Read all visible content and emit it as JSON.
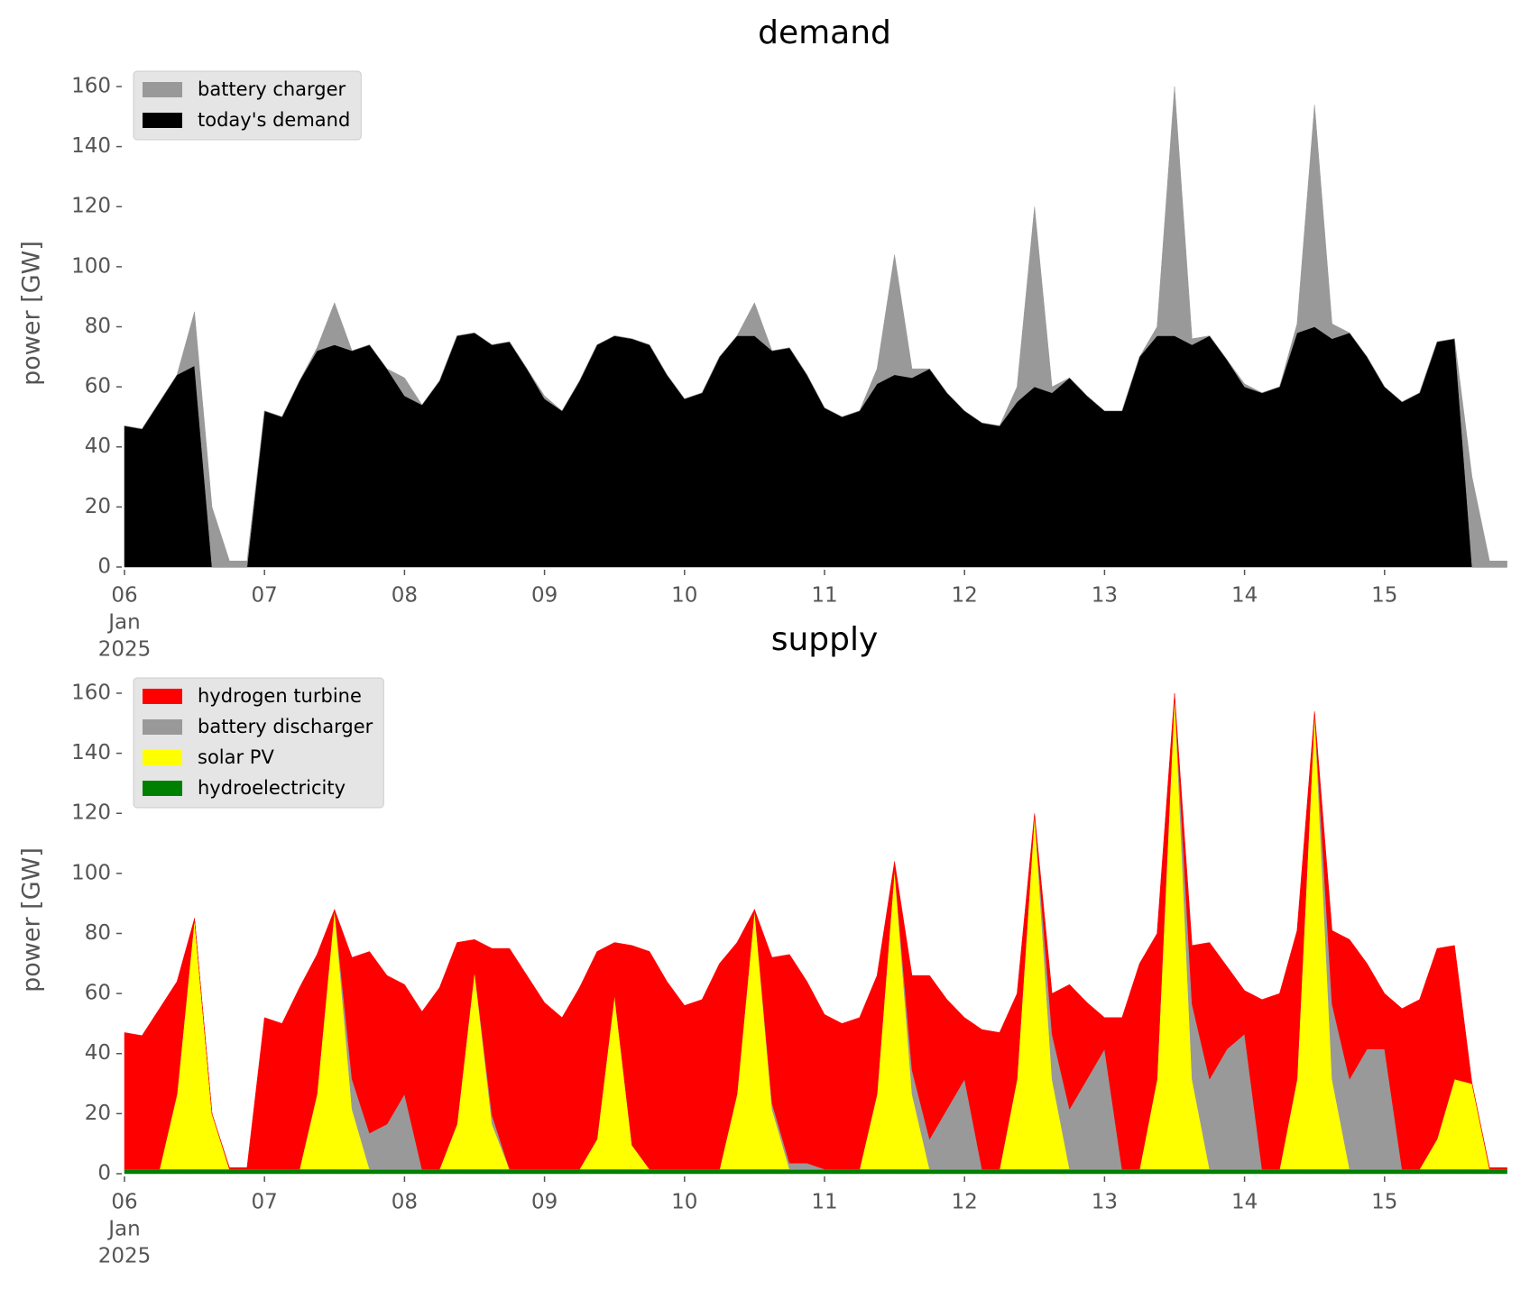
{
  "chart_data": [
    {
      "type": "stacked_area",
      "title": "demand",
      "y_label": "power [GW]",
      "x": [
        "2025-01-06 00:00",
        "2025-01-06 03:00",
        "2025-01-06 06:00",
        "2025-01-06 09:00",
        "2025-01-06 12:00",
        "2025-01-06 15:00",
        "2025-01-06 18:00",
        "2025-01-06 21:00",
        "2025-01-07 00:00",
        "2025-01-07 03:00",
        "2025-01-07 06:00",
        "2025-01-07 09:00",
        "2025-01-07 12:00",
        "2025-01-07 15:00",
        "2025-01-07 18:00",
        "2025-01-07 21:00",
        "2025-01-08 00:00",
        "2025-01-08 03:00",
        "2025-01-08 06:00",
        "2025-01-08 09:00",
        "2025-01-08 12:00",
        "2025-01-08 15:00",
        "2025-01-08 18:00",
        "2025-01-08 21:00",
        "2025-01-09 00:00",
        "2025-01-09 03:00",
        "2025-01-09 06:00",
        "2025-01-09 09:00",
        "2025-01-09 12:00",
        "2025-01-09 15:00",
        "2025-01-09 18:00",
        "2025-01-09 21:00",
        "2025-01-10 00:00",
        "2025-01-10 03:00",
        "2025-01-10 06:00",
        "2025-01-10 09:00",
        "2025-01-10 12:00",
        "2025-01-10 15:00",
        "2025-01-10 18:00",
        "2025-01-10 21:00",
        "2025-01-11 00:00",
        "2025-01-11 03:00",
        "2025-01-11 06:00",
        "2025-01-11 09:00",
        "2025-01-11 12:00",
        "2025-01-11 15:00",
        "2025-01-11 18:00",
        "2025-01-11 21:00",
        "2025-01-12 00:00",
        "2025-01-12 03:00",
        "2025-01-12 06:00",
        "2025-01-12 09:00",
        "2025-01-12 12:00",
        "2025-01-12 15:00",
        "2025-01-12 18:00",
        "2025-01-12 21:00",
        "2025-01-13 00:00",
        "2025-01-13 03:00",
        "2025-01-13 06:00",
        "2025-01-13 09:00",
        "2025-01-13 12:00",
        "2025-01-13 15:00",
        "2025-01-13 18:00",
        "2025-01-13 21:00",
        "2025-01-14 00:00",
        "2025-01-14 03:00",
        "2025-01-14 06:00",
        "2025-01-14 09:00",
        "2025-01-14 12:00",
        "2025-01-14 15:00",
        "2025-01-14 18:00",
        "2025-01-14 21:00",
        "2025-01-15 00:00",
        "2025-01-15 03:00",
        "2025-01-15 06:00",
        "2025-01-15 09:00",
        "2025-01-15 12:00",
        "2025-01-15 15:00",
        "2025-01-15 18:00",
        "2025-01-15 21:00"
      ],
      "xlim": [
        "2025-01-06 00:00",
        "2025-01-16 00:00"
      ],
      "xticks": [
        {
          "value": "2025-01-06 00:00",
          "label": [
            "06",
            "Jan",
            "2025"
          ]
        },
        {
          "value": "2025-01-07 00:00",
          "label": "07"
        },
        {
          "value": "2025-01-08 00:00",
          "label": "08"
        },
        {
          "value": "2025-01-09 00:00",
          "label": "09"
        },
        {
          "value": "2025-01-10 00:00",
          "label": "10"
        },
        {
          "value": "2025-01-11 00:00",
          "label": "11"
        },
        {
          "value": "2025-01-12 00:00",
          "label": "12"
        },
        {
          "value": "2025-01-13 00:00",
          "label": "13"
        },
        {
          "value": "2025-01-14 00:00",
          "label": "14"
        },
        {
          "value": "2025-01-15 00:00",
          "label": "15"
        }
      ],
      "ylim": [
        0,
        169
      ],
      "yticks": [
        0,
        20,
        40,
        60,
        80,
        100,
        120,
        140,
        160
      ],
      "grid": false,
      "legend": "upper left",
      "series": [
        {
          "name": "battery charger",
          "color": "#999999",
          "values": [
            0,
            0,
            0,
            0,
            18,
            20,
            2,
            2,
            0,
            0,
            0,
            1,
            14,
            0,
            0,
            0,
            6,
            0,
            0,
            0,
            0,
            0,
            0,
            0,
            1,
            0,
            0,
            0,
            0,
            0,
            0,
            0,
            0,
            0,
            0,
            0,
            11,
            0,
            0,
            0,
            0,
            0,
            0,
            5,
            40,
            3,
            0,
            0,
            0,
            0,
            0,
            5,
            60,
            2,
            0,
            0,
            0,
            0,
            0,
            3,
            83,
            2,
            0,
            0,
            1,
            0,
            0,
            3,
            74,
            5,
            0,
            0,
            0,
            0,
            0,
            0,
            0,
            30,
            2,
            2
          ]
        },
        {
          "name": "today's demand",
          "color": "#000000",
          "values": [
            47,
            46,
            55,
            64,
            67,
            0,
            0,
            0,
            52,
            50,
            62,
            72,
            74,
            72,
            74,
            66,
            57,
            54,
            62,
            77,
            78,
            74,
            75,
            66,
            56,
            52,
            62,
            74,
            77,
            76,
            74,
            64,
            56,
            58,
            70,
            77,
            77,
            72,
            73,
            64,
            53,
            50,
            52,
            61,
            64,
            63,
            66,
            58,
            52,
            48,
            47,
            55,
            60,
            58,
            63,
            57,
            52,
            52,
            70,
            77,
            77,
            74,
            77,
            69,
            60,
            58,
            60,
            78,
            80,
            76,
            78,
            70,
            60,
            55,
            58,
            75,
            76,
            0,
            0,
            0
          ]
        }
      ]
    },
    {
      "type": "stacked_area",
      "title": "supply",
      "y_label": "power [GW]",
      "x": [
        "2025-01-06 00:00",
        "2025-01-06 03:00",
        "2025-01-06 06:00",
        "2025-01-06 09:00",
        "2025-01-06 12:00",
        "2025-01-06 15:00",
        "2025-01-06 18:00",
        "2025-01-06 21:00",
        "2025-01-07 00:00",
        "2025-01-07 03:00",
        "2025-01-07 06:00",
        "2025-01-07 09:00",
        "2025-01-07 12:00",
        "2025-01-07 15:00",
        "2025-01-07 18:00",
        "2025-01-07 21:00",
        "2025-01-08 00:00",
        "2025-01-08 03:00",
        "2025-01-08 06:00",
        "2025-01-08 09:00",
        "2025-01-08 12:00",
        "2025-01-08 15:00",
        "2025-01-08 18:00",
        "2025-01-08 21:00",
        "2025-01-09 00:00",
        "2025-01-09 03:00",
        "2025-01-09 06:00",
        "2025-01-09 09:00",
        "2025-01-09 12:00",
        "2025-01-09 15:00",
        "2025-01-09 18:00",
        "2025-01-09 21:00",
        "2025-01-10 00:00",
        "2025-01-10 03:00",
        "2025-01-10 06:00",
        "2025-01-10 09:00",
        "2025-01-10 12:00",
        "2025-01-10 15:00",
        "2025-01-10 18:00",
        "2025-01-10 21:00",
        "2025-01-11 00:00",
        "2025-01-11 03:00",
        "2025-01-11 06:00",
        "2025-01-11 09:00",
        "2025-01-11 12:00",
        "2025-01-11 15:00",
        "2025-01-11 18:00",
        "2025-01-11 21:00",
        "2025-01-12 00:00",
        "2025-01-12 03:00",
        "2025-01-12 06:00",
        "2025-01-12 09:00",
        "2025-01-12 12:00",
        "2025-01-12 15:00",
        "2025-01-12 18:00",
        "2025-01-12 21:00",
        "2025-01-13 00:00",
        "2025-01-13 03:00",
        "2025-01-13 06:00",
        "2025-01-13 09:00",
        "2025-01-13 12:00",
        "2025-01-13 15:00",
        "2025-01-13 18:00",
        "2025-01-13 21:00",
        "2025-01-14 00:00",
        "2025-01-14 03:00",
        "2025-01-14 06:00",
        "2025-01-14 09:00",
        "2025-01-14 12:00",
        "2025-01-14 15:00",
        "2025-01-14 18:00",
        "2025-01-14 21:00",
        "2025-01-15 00:00",
        "2025-01-15 03:00",
        "2025-01-15 06:00",
        "2025-01-15 09:00",
        "2025-01-15 12:00",
        "2025-01-15 15:00",
        "2025-01-15 18:00",
        "2025-01-15 21:00"
      ],
      "xlim": [
        "2025-01-06 00:00",
        "2025-01-16 00:00"
      ],
      "xticks": [
        {
          "value": "2025-01-06 00:00",
          "label": [
            "06",
            "Jan",
            "2025"
          ]
        },
        {
          "value": "2025-01-07 00:00",
          "label": "07"
        },
        {
          "value": "2025-01-08 00:00",
          "label": "08"
        },
        {
          "value": "2025-01-09 00:00",
          "label": "09"
        },
        {
          "value": "2025-01-10 00:00",
          "label": "10"
        },
        {
          "value": "2025-01-11 00:00",
          "label": "11"
        },
        {
          "value": "2025-01-12 00:00",
          "label": "12"
        },
        {
          "value": "2025-01-13 00:00",
          "label": "13"
        },
        {
          "value": "2025-01-14 00:00",
          "label": "14"
        },
        {
          "value": "2025-01-15 00:00",
          "label": "15"
        }
      ],
      "ylim": [
        0,
        169
      ],
      "yticks": [
        0,
        20,
        40,
        60,
        80,
        100,
        120,
        140,
        160
      ],
      "grid": false,
      "legend": "upper left",
      "series": [
        {
          "name": "hydrogen turbine",
          "color": "#ff0000",
          "values": [
            45.5,
            44.5,
            53.5,
            37.5,
            0,
            0,
            0.5,
            0.5,
            50.5,
            48.5,
            60.5,
            46.5,
            0,
            40.5,
            60.5,
            49.5,
            36.5,
            52.5,
            60.5,
            60.5,
            10.5,
            55.5,
            73.5,
            64.5,
            55.5,
            50.5,
            60.5,
            62.5,
            17.5,
            66.5,
            72.5,
            62.5,
            54.5,
            56.5,
            68.5,
            50.5,
            0,
            48.5,
            69.5,
            60.5,
            51.5,
            48.5,
            50.5,
            39.5,
            2.5,
            31.5,
            54.5,
            36.5,
            20.5,
            46.5,
            45.5,
            28.5,
            0.5,
            13.5,
            41.5,
            25.5,
            10.5,
            50.5,
            68.5,
            48.5,
            0.5,
            19.5,
            45.5,
            27.5,
            14.5,
            56.5,
            58.5,
            49.5,
            0.5,
            24.5,
            46.5,
            28.5,
            18.5,
            53.5,
            56.5,
            63.5,
            44.5,
            0,
            0.5,
            0.5
          ]
        },
        {
          "name": "battery discharger",
          "color": "#999999",
          "values": [
            0,
            0,
            0,
            0,
            0,
            0,
            0,
            0,
            0,
            0,
            0,
            0,
            0,
            10,
            12,
            15,
            25,
            0,
            0,
            0,
            0,
            3,
            0,
            0,
            0,
            0,
            0,
            0,
            0,
            0,
            0,
            0,
            0,
            0,
            0,
            0,
            0,
            2,
            2,
            2,
            0,
            0,
            0,
            0,
            0,
            8,
            10,
            20,
            30,
            0,
            0,
            0,
            0,
            15,
            20,
            30,
            40,
            0,
            0,
            0,
            0,
            25,
            30,
            40,
            45,
            0,
            0,
            0,
            0,
            25,
            30,
            40,
            40,
            0,
            0,
            0,
            0,
            0,
            0,
            0
          ]
        },
        {
          "name": "solar PV",
          "color": "#ffff00",
          "values": [
            0,
            0,
            0,
            25,
            83.5,
            18.5,
            0,
            0,
            0,
            0,
            0,
            25,
            86.5,
            20,
            0,
            0,
            0,
            0,
            0,
            15,
            66,
            15,
            0,
            0,
            0,
            0,
            0,
            10,
            58,
            8,
            0,
            0,
            0,
            0,
            0,
            25,
            86.5,
            20,
            0,
            0,
            0,
            0,
            0,
            25,
            100,
            25,
            0,
            0,
            0,
            0,
            0,
            30,
            118,
            30,
            0,
            0,
            0,
            0,
            0,
            30,
            158,
            30,
            0,
            0,
            0,
            0,
            0,
            30,
            152,
            30,
            0,
            0,
            0,
            0,
            0,
            10,
            30,
            28.5,
            0,
            0
          ]
        },
        {
          "name": "hydroelectricity",
          "color": "#008000",
          "values": [
            1.5,
            1.5,
            1.5,
            1.5,
            1.5,
            1.5,
            1.5,
            1.5,
            1.5,
            1.5,
            1.5,
            1.5,
            1.5,
            1.5,
            1.5,
            1.5,
            1.5,
            1.5,
            1.5,
            1.5,
            1.5,
            1.5,
            1.5,
            1.5,
            1.5,
            1.5,
            1.5,
            1.5,
            1.5,
            1.5,
            1.5,
            1.5,
            1.5,
            1.5,
            1.5,
            1.5,
            1.5,
            1.5,
            1.5,
            1.5,
            1.5,
            1.5,
            1.5,
            1.5,
            1.5,
            1.5,
            1.5,
            1.5,
            1.5,
            1.5,
            1.5,
            1.5,
            1.5,
            1.5,
            1.5,
            1.5,
            1.5,
            1.5,
            1.5,
            1.5,
            1.5,
            1.5,
            1.5,
            1.5,
            1.5,
            1.5,
            1.5,
            1.5,
            1.5,
            1.5,
            1.5,
            1.5,
            1.5,
            1.5,
            1.5,
            1.5,
            1.5,
            1.5,
            1.5,
            1.5
          ]
        }
      ]
    }
  ]
}
